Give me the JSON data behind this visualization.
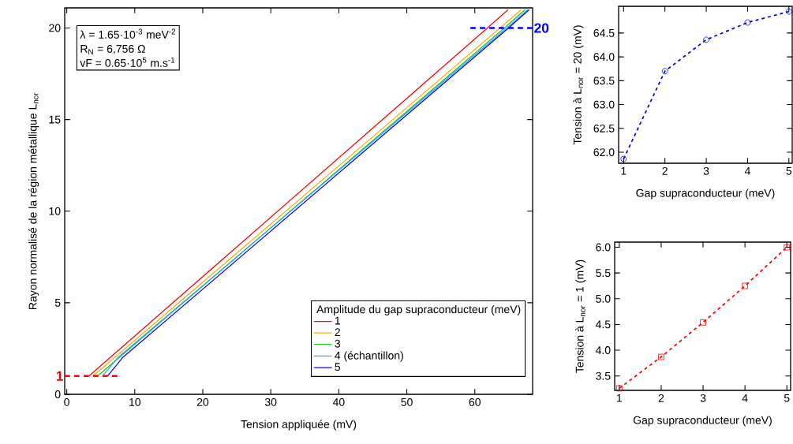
{
  "chart_data": [
    {
      "type": "line",
      "xlabel": "Tension appliquée (mV)",
      "ylabel": "Rayon normalisé de la région métallique L$_{nor}$",
      "legend_title": "Amplitude du gap supraconducteur (meV)",
      "legend": "bottom right",
      "grid": false,
      "marker": "none",
      "line_style": "solid",
      "xlim": [
        -0.3,
        68.5
      ],
      "ylim": [
        0,
        21.1
      ],
      "xticks": [
        0,
        10,
        20,
        30,
        40,
        50,
        60
      ],
      "yticks": [
        0,
        5,
        10,
        15,
        20
      ],
      "annotations": [
        "λ = 1.65·10$^{-3}$ meV$^{-2}$",
        "R$_{N}$ = 6,756 Ω",
        "vF = 0.65·10$^{5}$ m.s$^{-1}$"
      ],
      "ref_lines": [
        {
          "axis": "y",
          "value": 1,
          "label": "1",
          "color": "#ff0000",
          "line_style": "dashed"
        },
        {
          "axis": "y",
          "value": 20,
          "label": "20",
          "color": "#0000ff",
          "line_style": "dashed"
        }
      ],
      "series": [
        {
          "name": "1",
          "color": "#ff0000",
          "x": [
            3.27,
            61.85,
            64.9
          ],
          "values": [
            1,
            20,
            21
          ]
        },
        {
          "name": "2",
          "color": "#ffaa00",
          "x": [
            3.87,
            63.7,
            66.85
          ],
          "values": [
            1,
            20,
            21
          ]
        },
        {
          "name": "3",
          "color": "#22bb22",
          "x": [
            4.54,
            64.35,
            67.4
          ],
          "values": [
            1,
            20,
            21
          ]
        },
        {
          "name": "4 (échantillon)",
          "color": "#22aaff",
          "x": [
            5.25,
            7.5,
            64.7,
            67.8
          ],
          "values": [
            1,
            2,
            20,
            21
          ]
        },
        {
          "name": "5",
          "color": "#0000ff",
          "x": [
            6.0,
            8.2,
            64.95,
            68.0
          ],
          "values": [
            1,
            2,
            20,
            21
          ]
        }
      ]
    },
    {
      "type": "line",
      "xlabel": "Gap supraconducteur (meV)",
      "ylabel": "Tension à L$_{nor}$ = 20 (mV)",
      "legend": false,
      "grid": false,
      "marker": "circle",
      "line_style": "dashed",
      "xlim": [
        0.88,
        5.08
      ],
      "ylim": [
        61.77,
        65.06
      ],
      "xticks": [
        1,
        2,
        3,
        4,
        5
      ],
      "yticks": [
        {
          "value": 62.0,
          "label": "62.0"
        },
        {
          "value": 62.5,
          "label": "62.5"
        },
        {
          "value": 63.0,
          "label": "63.0"
        },
        {
          "value": 63.5,
          "label": "63.5"
        },
        {
          "value": 64.0,
          "label": "64.0"
        },
        {
          "value": 64.5,
          "label": "64.5"
        }
      ],
      "series": [
        {
          "color": "#0000ff",
          "x": [
            1,
            2,
            3,
            4,
            5
          ],
          "values": [
            61.86,
            63.7,
            64.36,
            64.72,
            64.95
          ]
        }
      ]
    },
    {
      "type": "line",
      "xlabel": "Gap supraconducteur (meV)",
      "ylabel": "Tension à L$_{nor}$ = 1 (mV)",
      "legend": false,
      "grid": false,
      "marker": "square",
      "line_style": "dashed",
      "xlim": [
        0.89,
        5.09
      ],
      "ylim": [
        3.22,
        6.1
      ],
      "xticks": [
        1,
        2,
        3,
        4,
        5
      ],
      "yticks": [
        {
          "value": 3.5,
          "label": "3.5"
        },
        {
          "value": 4.0,
          "label": "4.0"
        },
        {
          "value": 4.5,
          "label": "4.5"
        },
        {
          "value": 5.0,
          "label": "5.0"
        },
        {
          "value": 5.5,
          "label": "5.5"
        },
        {
          "value": 6.0,
          "label": "6.0"
        }
      ],
      "series": [
        {
          "color": "#ff0000",
          "x": [
            1,
            2,
            3,
            4,
            5
          ],
          "values": [
            3.26,
            3.87,
            4.54,
            5.25,
            6.0
          ]
        }
      ]
    }
  ]
}
